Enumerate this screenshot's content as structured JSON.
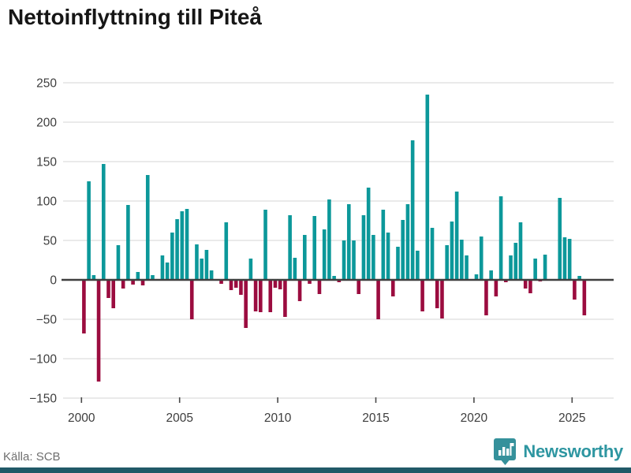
{
  "title": "Nettoinflyttning till Piteå",
  "footer": {
    "source": "Källa: SCB",
    "brand": "Newsworthy"
  },
  "colors": {
    "positive": "#0c989a",
    "negative": "#9b0c3f",
    "grid": "#e3e3e3",
    "zero_line": "#3f3f3f",
    "axis_text": "#3d3d3d",
    "title_text": "#161616",
    "source_text": "#6f6f6f",
    "brand_teal": "#2e96a1",
    "bottom_band": "#215968"
  },
  "chart_data": {
    "type": "bar",
    "title": "Nettoinflyttning till Piteå",
    "frequency": "quarterly",
    "start_quarter": "2000 Q1",
    "end_quarter": "2025 Q3",
    "values": [
      -68,
      125,
      6,
      -129,
      147,
      -23,
      -36,
      44,
      -11,
      95,
      -6,
      10,
      -7,
      133,
      6,
      0,
      31,
      22,
      60,
      77,
      87,
      90,
      -50,
      45,
      27,
      38,
      12,
      0,
      -5,
      73,
      -13,
      -10,
      -19,
      -61,
      27,
      -40,
      -41,
      89,
      -41,
      -10,
      -12,
      -47,
      82,
      28,
      -27,
      57,
      -5,
      81,
      -18,
      64,
      102,
      5,
      -3,
      50,
      96,
      50,
      -18,
      82,
      117,
      57,
      -50,
      89,
      60,
      -21,
      42,
      76,
      96,
      177,
      37,
      -40,
      235,
      66,
      -36,
      -49,
      44,
      74,
      112,
      51,
      31,
      0,
      7,
      55,
      -45,
      12,
      -21,
      106,
      -3,
      31,
      47,
      73,
      -11,
      -17,
      27,
      -2,
      32,
      0,
      0,
      104,
      54,
      52,
      -25,
      5,
      -45
    ],
    "x_ticks": [
      2000,
      2005,
      2010,
      2015,
      2020,
      2025
    ],
    "y_ticks": [
      250,
      200,
      150,
      100,
      50,
      0,
      -50,
      -100,
      -150
    ],
    "ylim": [
      -150,
      250
    ],
    "xlabel": "",
    "ylabel": "",
    "grid": true,
    "legend": false
  }
}
